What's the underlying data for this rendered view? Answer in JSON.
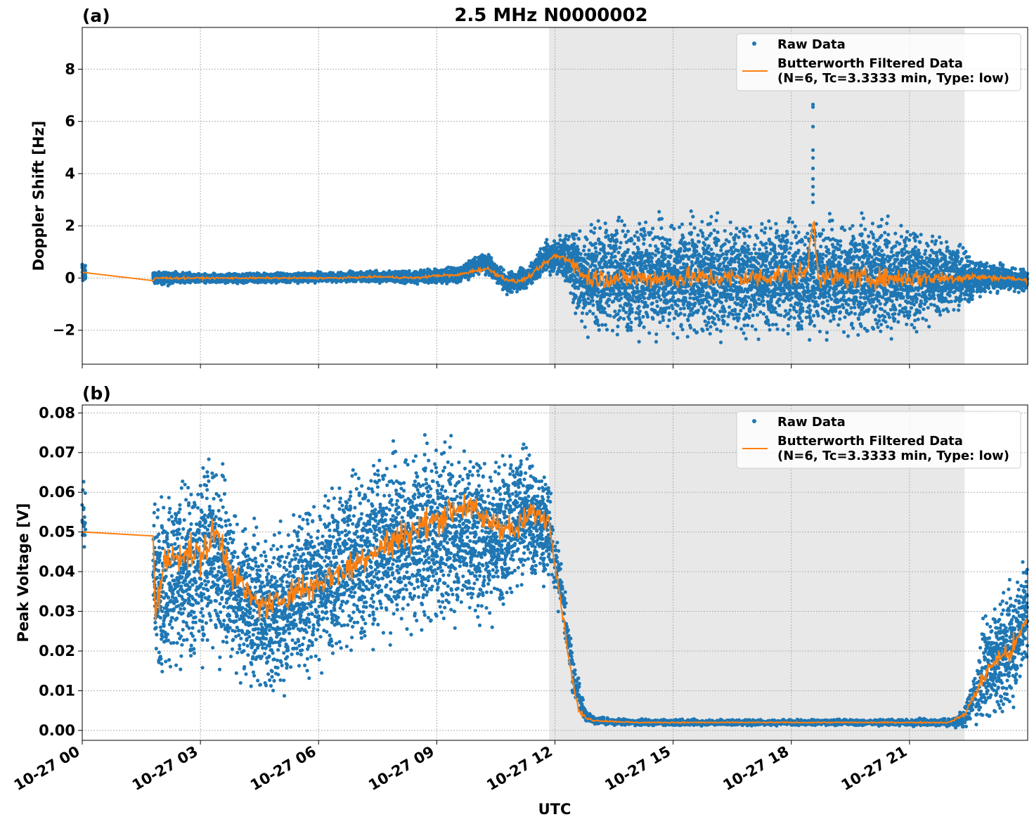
{
  "figure": {
    "title": "2.5 MHz N0000002",
    "xlabel": "UTC",
    "x_ticks": [
      "10-27 00",
      "10-27 03",
      "10-27 06",
      "10-27 09",
      "10-27 12",
      "10-27 15",
      "10-27 18",
      "10-27 21"
    ]
  },
  "colors": {
    "raw": "#1f77b4",
    "filtered": "#ff7f0e",
    "shade": "#e8e8e8",
    "grid": "#b0b0b0"
  },
  "legend": {
    "raw_label": "Raw Data",
    "filtered_label_line1": "Butterworth Filtered Data",
    "filtered_label_line2": "(N=6, Tc=3.3333 min, Type: low)"
  },
  "chart_data": [
    {
      "type": "scatter",
      "panel_label": "(a)",
      "ylabel": "Doppler Shift [Hz]",
      "x_unit": "hours UTC on 10-27",
      "xlim": [
        0,
        24
      ],
      "ylim": [
        -3.3,
        9.6
      ],
      "y_ticks": [
        "−2",
        "0",
        "2",
        "4",
        "6",
        "8"
      ],
      "y_tick_values": [
        -2,
        0,
        2,
        4,
        6,
        8
      ],
      "grid": true,
      "legend_position": "top-right",
      "shaded_x_range": [
        11.85,
        22.4
      ],
      "series": [
        {
          "name": "Raw Data",
          "style": "points",
          "envelope": {
            "x": [
              0,
              0.05,
              1.8,
              1.85,
              3,
              5,
              7,
              8.5,
              9.5,
              10.2,
              10.8,
              11.3,
              11.8,
              12.3,
              12.7,
              13,
              14,
              15,
              16,
              17,
              18,
              19,
              20,
              21,
              22,
              22.4,
              22.8,
              23.3,
              24
            ],
            "center": [
              0.3,
              0.2,
              0.0,
              0.0,
              0.0,
              0.0,
              0.05,
              0.05,
              0.1,
              0.6,
              -0.2,
              0.0,
              0.85,
              0.75,
              0.0,
              0.0,
              0.0,
              0.0,
              0.0,
              0.0,
              0.0,
              0.0,
              0.0,
              0.0,
              0.0,
              0.0,
              0.0,
              0.0,
              -0.1
            ],
            "halfwidth": [
              0.4,
              0.4,
              0.2,
              0.2,
              0.15,
              0.15,
              0.15,
              0.2,
              0.25,
              0.3,
              0.35,
              0.3,
              0.45,
              0.8,
              1.6,
              1.7,
              1.75,
              1.75,
              1.75,
              1.7,
              1.7,
              1.7,
              1.7,
              1.6,
              1.1,
              0.9,
              0.5,
              0.4,
              0.35
            ]
          },
          "spike": {
            "x": 18.55,
            "values": [
              6.65,
              6.55,
              5.8,
              4.9,
              4.6,
              4.2,
              3.8,
              3.5,
              3.2,
              2.9
            ]
          }
        },
        {
          "name": "Butterworth Filtered Data",
          "style": "line",
          "x": [
            0,
            1.8,
            1.85,
            2.5,
            3.5,
            4.5,
            5.5,
            6.5,
            7.5,
            8.5,
            9.0,
            9.5,
            10.0,
            10.3,
            10.7,
            11.0,
            11.3,
            11.7,
            12.0,
            12.4,
            12.6,
            12.8,
            13.5,
            15,
            17,
            18.4,
            18.55,
            18.7,
            20,
            22,
            22.5,
            23.5,
            24
          ],
          "y": [
            0.22,
            -0.1,
            0.0,
            0.0,
            0.0,
            0.0,
            0.0,
            0.0,
            0.05,
            0.0,
            0.1,
            0.1,
            0.3,
            0.35,
            0.0,
            -0.15,
            0.0,
            0.5,
            0.85,
            0.7,
            0.3,
            0.0,
            0.0,
            0.0,
            0.0,
            0.2,
            2.4,
            0.0,
            0.0,
            0.0,
            0.05,
            0.0,
            -0.1
          ]
        }
      ]
    },
    {
      "type": "scatter",
      "panel_label": "(b)",
      "ylabel": "Peak Voltage [V]",
      "x_unit": "hours UTC on 10-27",
      "xlim": [
        0,
        24
      ],
      "ylim": [
        -0.0025,
        0.082
      ],
      "y_ticks": [
        "0.00",
        "0.01",
        "0.02",
        "0.03",
        "0.04",
        "0.05",
        "0.06",
        "0.07",
        "0.08"
      ],
      "y_tick_values": [
        0,
        0.01,
        0.02,
        0.03,
        0.04,
        0.05,
        0.06,
        0.07,
        0.08
      ],
      "grid": true,
      "legend_position": "top-right",
      "shaded_x_range": [
        11.85,
        22.4
      ],
      "series": [
        {
          "name": "Raw Data",
          "style": "points",
          "envelope": {
            "x": [
              0,
              0.05,
              1.8,
              1.85,
              2.5,
              3.3,
              4,
              4.8,
              5.5,
              6.5,
              7.5,
              8.5,
              9.5,
              10.5,
              11.3,
              11.85,
              12.2,
              12.5,
              12.75,
              13,
              14,
              17,
              20,
              22,
              22.4,
              22.9,
              23.5,
              24
            ],
            "center": [
              0.053,
              0.052,
              0.045,
              0.035,
              0.038,
              0.045,
              0.033,
              0.028,
              0.035,
              0.04,
              0.046,
              0.048,
              0.05,
              0.048,
              0.055,
              0.05,
              0.033,
              0.012,
              0.004,
              0.0025,
              0.002,
              0.002,
              0.002,
              0.002,
              0.003,
              0.015,
              0.02,
              0.03
            ],
            "halfwidth": [
              0.007,
              0.007,
              0.01,
              0.018,
              0.018,
              0.02,
              0.016,
              0.015,
              0.017,
              0.017,
              0.018,
              0.018,
              0.017,
              0.016,
              0.013,
              0.01,
              0.006,
              0.004,
              0.0015,
              0.0008,
              0.0006,
              0.0006,
              0.0006,
              0.0008,
              0.002,
              0.01,
              0.012,
              0.012
            ]
          }
        },
        {
          "name": "Butterworth Filtered Data",
          "style": "line",
          "x": [
            0,
            0.05,
            1.8,
            1.85,
            2.1,
            2.5,
            3.0,
            3.4,
            3.8,
            4.3,
            4.8,
            5.3,
            5.8,
            6.3,
            6.8,
            7.3,
            7.8,
            8.3,
            8.8,
            9.3,
            9.7,
            10.2,
            10.6,
            11.0,
            11.4,
            11.85,
            12.1,
            12.4,
            12.6,
            12.8,
            13.0,
            14,
            16,
            18,
            20,
            22,
            22.4,
            22.8,
            23.2,
            23.6,
            24
          ],
          "y": [
            0.05,
            0.0525,
            0.049,
            0.03,
            0.042,
            0.045,
            0.044,
            0.05,
            0.04,
            0.033,
            0.031,
            0.035,
            0.036,
            0.039,
            0.041,
            0.045,
            0.047,
            0.05,
            0.052,
            0.055,
            0.057,
            0.053,
            0.052,
            0.05,
            0.055,
            0.053,
            0.036,
            0.015,
            0.005,
            0.003,
            0.0025,
            0.002,
            0.002,
            0.002,
            0.002,
            0.002,
            0.004,
            0.012,
            0.018,
            0.02,
            0.028
          ]
        }
      ]
    }
  ]
}
